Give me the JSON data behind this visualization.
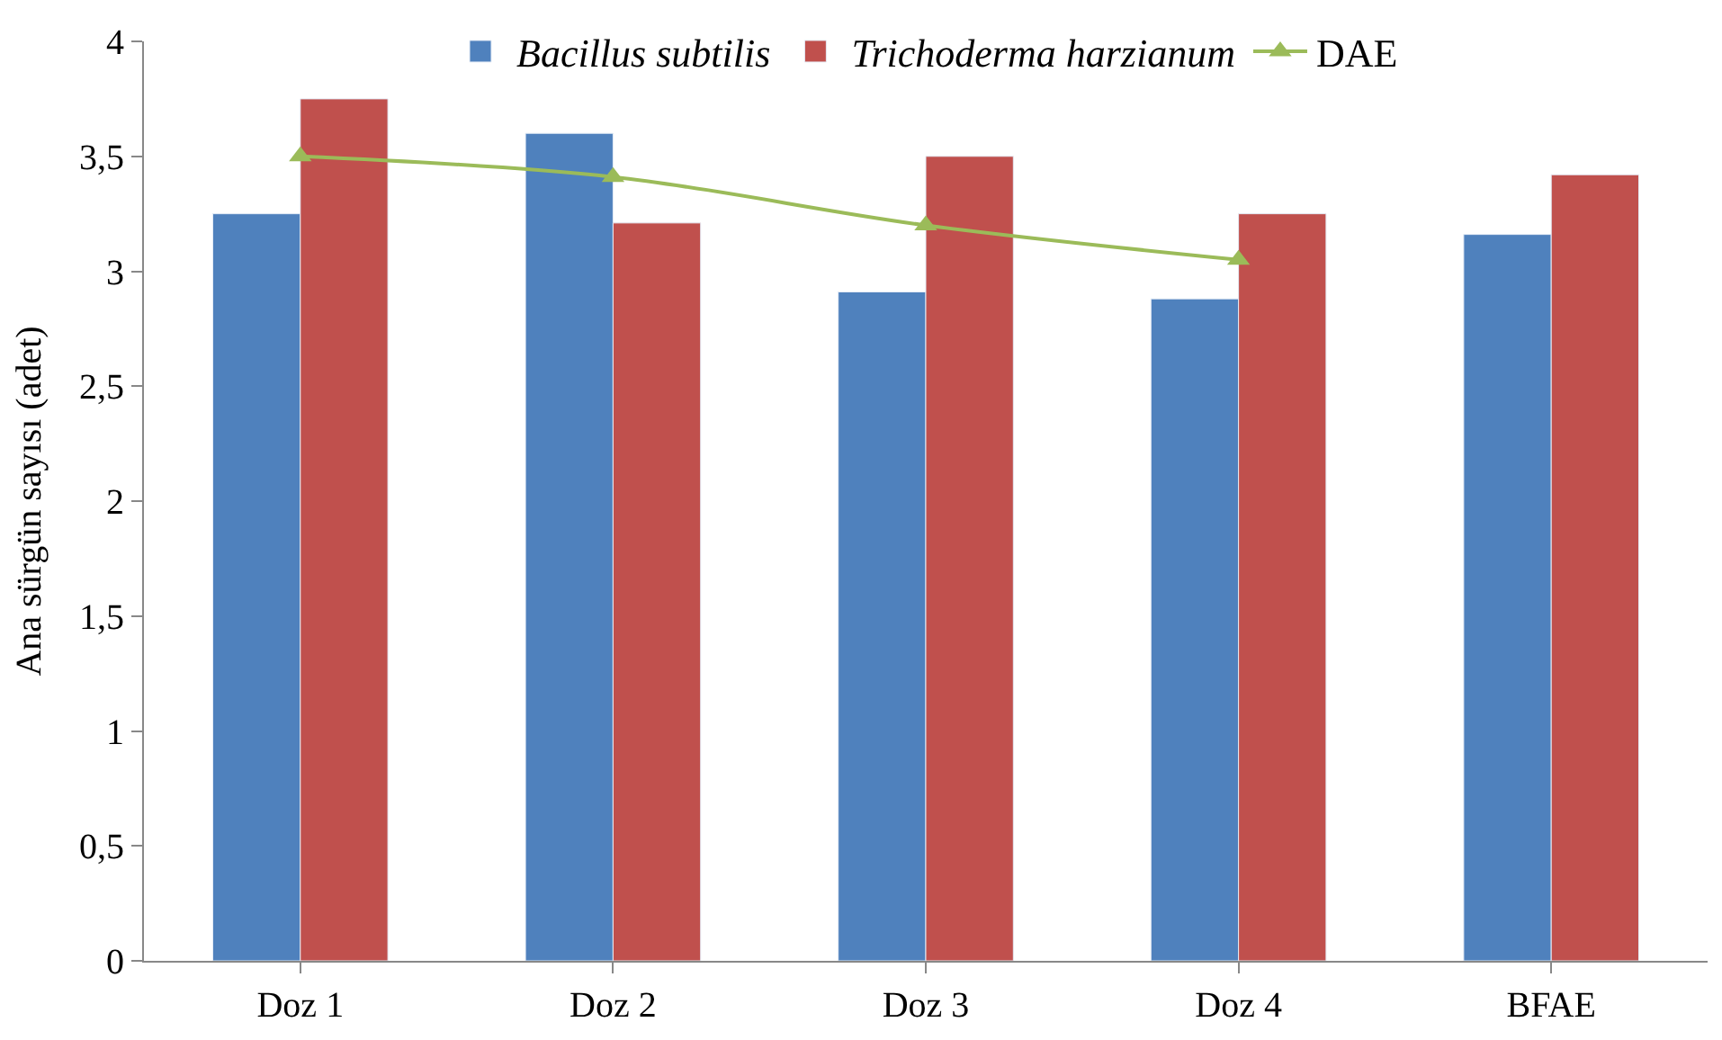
{
  "chart_data": {
    "type": "bar",
    "ylabel": "Ana sürgün sayısı (adet)",
    "categories": [
      "Doz 1",
      "Doz 2",
      "Doz 3",
      "Doz 4",
      "BFAE"
    ],
    "series": [
      {
        "name": "Bacillus subtilis",
        "color": "#4f81bd",
        "values": [
          3.25,
          3.6,
          2.91,
          2.88,
          3.16
        ]
      },
      {
        "name": "Trichoderma harzianum",
        "color": "#c0504d",
        "values": [
          3.75,
          3.21,
          3.5,
          3.25,
          3.42
        ]
      },
      {
        "name": "DAE",
        "type": "line",
        "color": "#9bbb59",
        "marker": "triangle",
        "values": [
          3.5,
          3.41,
          3.2,
          3.05,
          null
        ]
      }
    ],
    "ylim": [
      0,
      4
    ],
    "yticks": [
      0,
      {
        "value": 0.5,
        "label": "0,5"
      },
      1,
      {
        "value": 1.5,
        "label": "1,5"
      },
      2,
      {
        "value": 2.5,
        "label": "2,5"
      },
      3,
      {
        "value": 3.5,
        "label": "3,5"
      },
      4
    ],
    "legend": "top"
  }
}
